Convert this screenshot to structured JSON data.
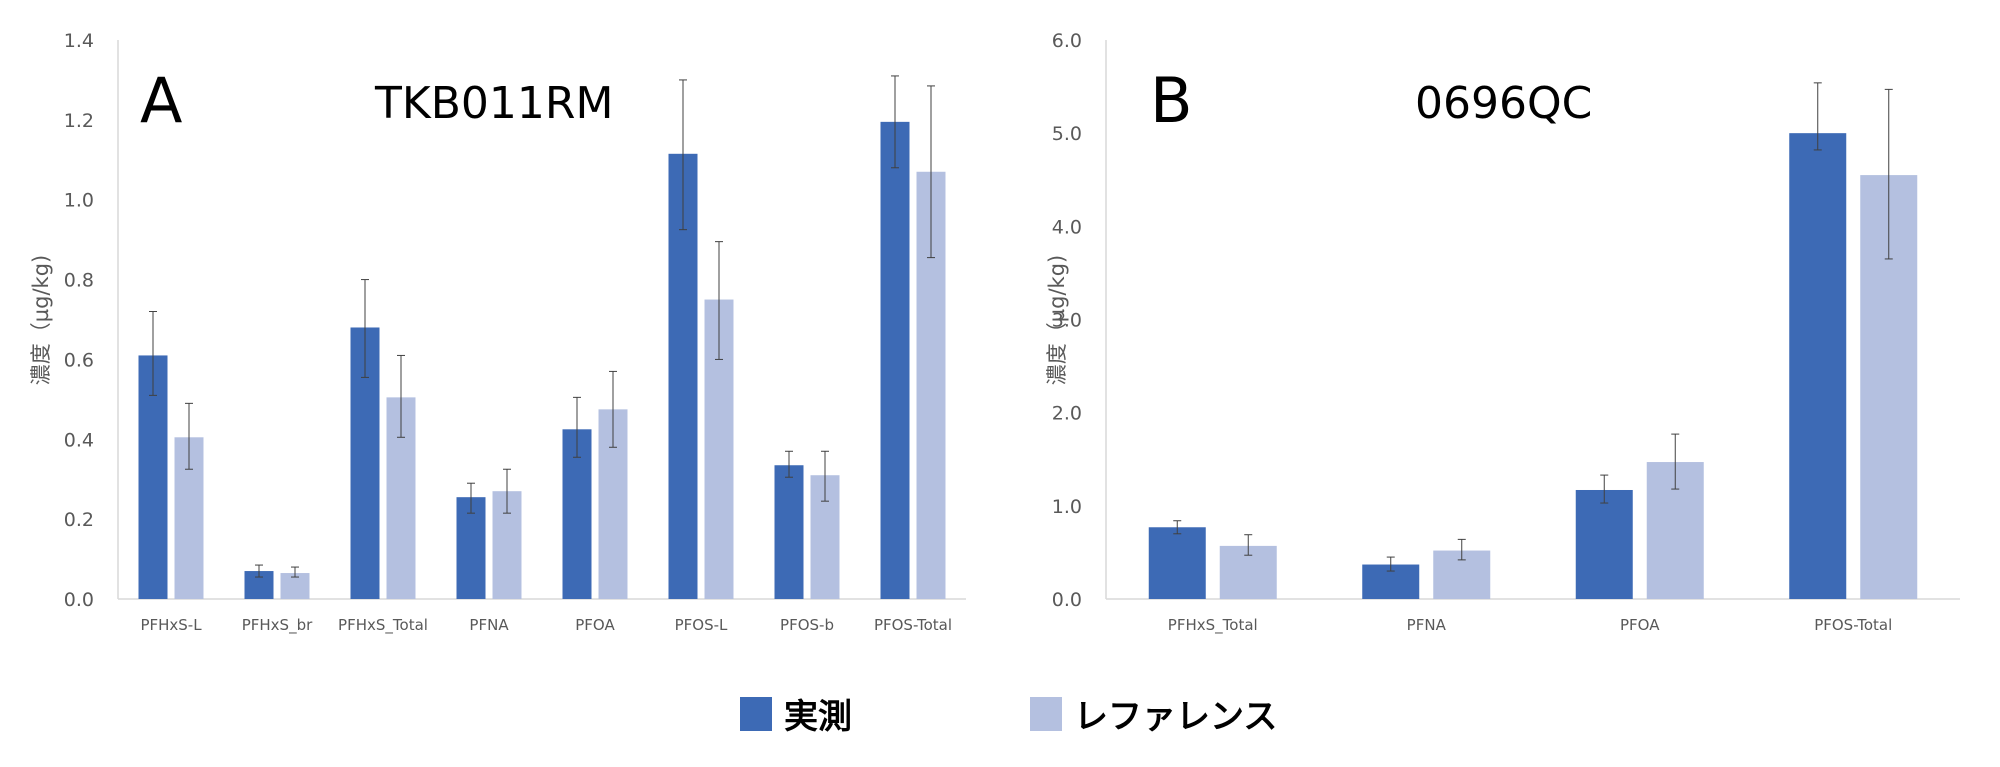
{
  "colors": {
    "measured": "#3D6AB5",
    "reference": "#B4C0E0",
    "axis": "#D9D9D9",
    "errorbar": "#404040",
    "text": "#595959"
  },
  "legend": {
    "position": "bottom-center",
    "items": [
      "実測",
      "レファレンス"
    ]
  },
  "chart_data": [
    {
      "type": "bar",
      "panel": "A",
      "title": "TKB011RM",
      "xlabel": "",
      "ylabel": "濃度（µg/kg)",
      "ylim": [
        0,
        1.4
      ],
      "yticks": [
        "0.0",
        "0.2",
        "0.4",
        "0.6",
        "0.8",
        "1.0",
        "1.2",
        "1.4"
      ],
      "categories": [
        "PFHxS-L",
        "PFHxS_br",
        "PFHxS_Total",
        "PFNA",
        "PFOA",
        "PFOS-L",
        "PFOS-b",
        "PFOS-Total"
      ],
      "grid": false,
      "series": [
        {
          "name": "実測",
          "values": [
            0.61,
            0.07,
            0.68,
            0.255,
            0.425,
            1.115,
            0.335,
            1.195
          ],
          "err_low": [
            0.51,
            0.055,
            0.555,
            0.215,
            0.355,
            0.925,
            0.305,
            1.08
          ],
          "err_high": [
            0.72,
            0.085,
            0.8,
            0.29,
            0.505,
            1.3,
            0.37,
            1.31
          ]
        },
        {
          "name": "レファレンス",
          "values": [
            0.405,
            0.065,
            0.505,
            0.27,
            0.475,
            0.75,
            0.31,
            1.07
          ],
          "err_low": [
            0.325,
            0.055,
            0.405,
            0.215,
            0.38,
            0.6,
            0.245,
            0.855
          ],
          "err_high": [
            0.49,
            0.08,
            0.61,
            0.325,
            0.57,
            0.895,
            0.37,
            1.285
          ]
        }
      ]
    },
    {
      "type": "bar",
      "panel": "B",
      "title": "0696QC",
      "xlabel": "",
      "ylabel": "濃度（µg/kg)",
      "ylim": [
        0,
        6.0
      ],
      "yticks": [
        "0.0",
        "1.0",
        "2.0",
        "3.0",
        "4.0",
        "5.0",
        "6.0"
      ],
      "categories": [
        "PFHxS_Total",
        "PFNA",
        "PFOA",
        "PFOS-Total"
      ],
      "grid": false,
      "series": [
        {
          "name": "実測",
          "values": [
            0.77,
            0.37,
            1.17,
            5.0
          ],
          "err_low": [
            0.7,
            0.3,
            1.03,
            4.82
          ],
          "err_high": [
            0.84,
            0.45,
            1.33,
            5.54
          ]
        },
        {
          "name": "レファレンス",
          "values": [
            0.57,
            0.52,
            1.47,
            4.55
          ],
          "err_low": [
            0.47,
            0.42,
            1.18,
            3.65
          ],
          "err_high": [
            0.69,
            0.64,
            1.77,
            5.47
          ]
        }
      ]
    }
  ]
}
